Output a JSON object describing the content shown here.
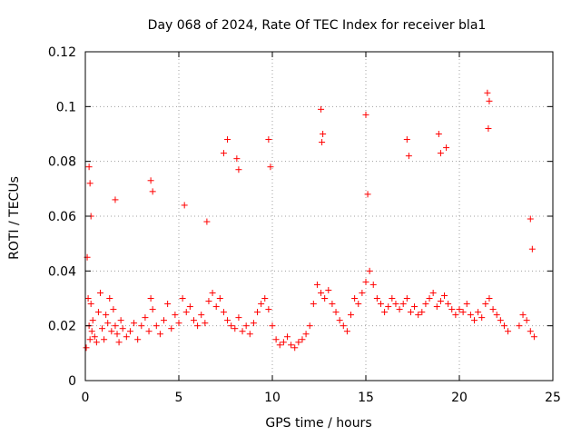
{
  "chart_data": {
    "type": "scatter",
    "title": "Day 068 of 2024, Rate Of TEC Index for receiver bla1",
    "xlabel": "GPS time / hours",
    "ylabel": "ROTI / TECUs",
    "xlim": [
      0,
      25
    ],
    "ylim": [
      0,
      0.12
    ],
    "x_ticks": [
      0,
      5,
      10,
      15,
      20,
      25
    ],
    "x_tick_labels": [
      "0",
      "5",
      "10",
      "15",
      "20",
      "25"
    ],
    "y_ticks": [
      0,
      0.02,
      0.04,
      0.06,
      0.08,
      0.1,
      0.12
    ],
    "y_tick_labels": [
      "0",
      "0.02",
      "0.04",
      "0.06",
      "0.08",
      "0.1",
      "0.12"
    ],
    "grid": true,
    "marker": "plus",
    "color": "#ff0000",
    "series": [
      {
        "name": "ROTI",
        "x": [
          0.05,
          0.1,
          0.15,
          0.2,
          0.25,
          0.3,
          0.35,
          0.4,
          0.5,
          0.6,
          0.7,
          0.8,
          0.9,
          1.0,
          1.1,
          1.2,
          1.3,
          1.4,
          1.5,
          1.6,
          1.7,
          1.8,
          1.9,
          2.0,
          2.2,
          2.4,
          2.6,
          2.8,
          3.0,
          3.2,
          3.4,
          3.5,
          3.6,
          3.8,
          4.0,
          4.2,
          4.4,
          4.6,
          4.8,
          5.0,
          5.2,
          5.4,
          5.6,
          5.8,
          6.0,
          6.2,
          6.4,
          6.6,
          6.8,
          7.0,
          7.2,
          7.4,
          7.6,
          7.8,
          8.0,
          8.2,
          8.4,
          8.6,
          8.8,
          9.0,
          9.2,
          9.4,
          9.6,
          9.8,
          10.0,
          10.2,
          10.4,
          10.6,
          10.8,
          11.0,
          11.2,
          11.4,
          11.6,
          11.8,
          12.0,
          12.2,
          12.4,
          12.6,
          12.8,
          13.0,
          13.2,
          13.4,
          13.6,
          13.8,
          14.0,
          14.2,
          14.4,
          14.6,
          14.8,
          15.0,
          15.2,
          15.4,
          15.6,
          15.8,
          16.0,
          16.2,
          16.4,
          16.6,
          16.8,
          17.0,
          17.2,
          17.4,
          17.6,
          17.8,
          18.0,
          18.2,
          18.4,
          18.6,
          18.8,
          19.0,
          19.2,
          19.4,
          19.6,
          19.8,
          20.0,
          20.2,
          20.4,
          20.6,
          20.8,
          21.0,
          21.2,
          21.4,
          21.6,
          21.8,
          22.0,
          22.2,
          22.4,
          22.6,
          23.2,
          23.4,
          23.6,
          23.8,
          24.0,
          0.2,
          0.25,
          0.3,
          1.6,
          3.5,
          3.6,
          5.3,
          6.5,
          7.4,
          7.6,
          8.1,
          8.2,
          9.8,
          9.9,
          12.6,
          12.7,
          12.65,
          15.0,
          15.1,
          17.2,
          17.3,
          18.9,
          19.0,
          19.3,
          21.5,
          21.6,
          21.55,
          23.8,
          23.9
        ],
        "y": [
          0.012,
          0.045,
          0.03,
          0.02,
          0.015,
          0.028,
          0.018,
          0.022,
          0.016,
          0.014,
          0.025,
          0.032,
          0.019,
          0.015,
          0.024,
          0.021,
          0.03,
          0.018,
          0.026,
          0.02,
          0.017,
          0.014,
          0.022,
          0.019,
          0.016,
          0.018,
          0.021,
          0.015,
          0.02,
          0.023,
          0.018,
          0.03,
          0.026,
          0.02,
          0.017,
          0.022,
          0.028,
          0.019,
          0.024,
          0.021,
          0.03,
          0.025,
          0.027,
          0.022,
          0.02,
          0.024,
          0.021,
          0.029,
          0.032,
          0.027,
          0.03,
          0.025,
          0.022,
          0.02,
          0.019,
          0.023,
          0.018,
          0.02,
          0.017,
          0.021,
          0.025,
          0.028,
          0.03,
          0.026,
          0.02,
          0.015,
          0.013,
          0.014,
          0.016,
          0.013,
          0.012,
          0.014,
          0.015,
          0.017,
          0.02,
          0.028,
          0.035,
          0.032,
          0.03,
          0.033,
          0.028,
          0.025,
          0.022,
          0.02,
          0.018,
          0.024,
          0.03,
          0.028,
          0.032,
          0.036,
          0.04,
          0.035,
          0.03,
          0.028,
          0.025,
          0.027,
          0.03,
          0.028,
          0.026,
          0.028,
          0.03,
          0.025,
          0.027,
          0.024,
          0.025,
          0.028,
          0.03,
          0.032,
          0.027,
          0.029,
          0.031,
          0.028,
          0.026,
          0.024,
          0.026,
          0.025,
          0.028,
          0.024,
          0.022,
          0.025,
          0.023,
          0.028,
          0.03,
          0.026,
          0.024,
          0.022,
          0.02,
          0.018,
          0.02,
          0.024,
          0.022,
          0.018,
          0.016,
          0.078,
          0.072,
          0.06,
          0.066,
          0.073,
          0.069,
          0.064,
          0.058,
          0.083,
          0.088,
          0.081,
          0.077,
          0.088,
          0.078,
          0.099,
          0.09,
          0.087,
          0.097,
          0.068,
          0.088,
          0.082,
          0.09,
          0.083,
          0.085,
          0.105,
          0.102,
          0.092,
          0.059,
          0.048
        ]
      }
    ]
  }
}
